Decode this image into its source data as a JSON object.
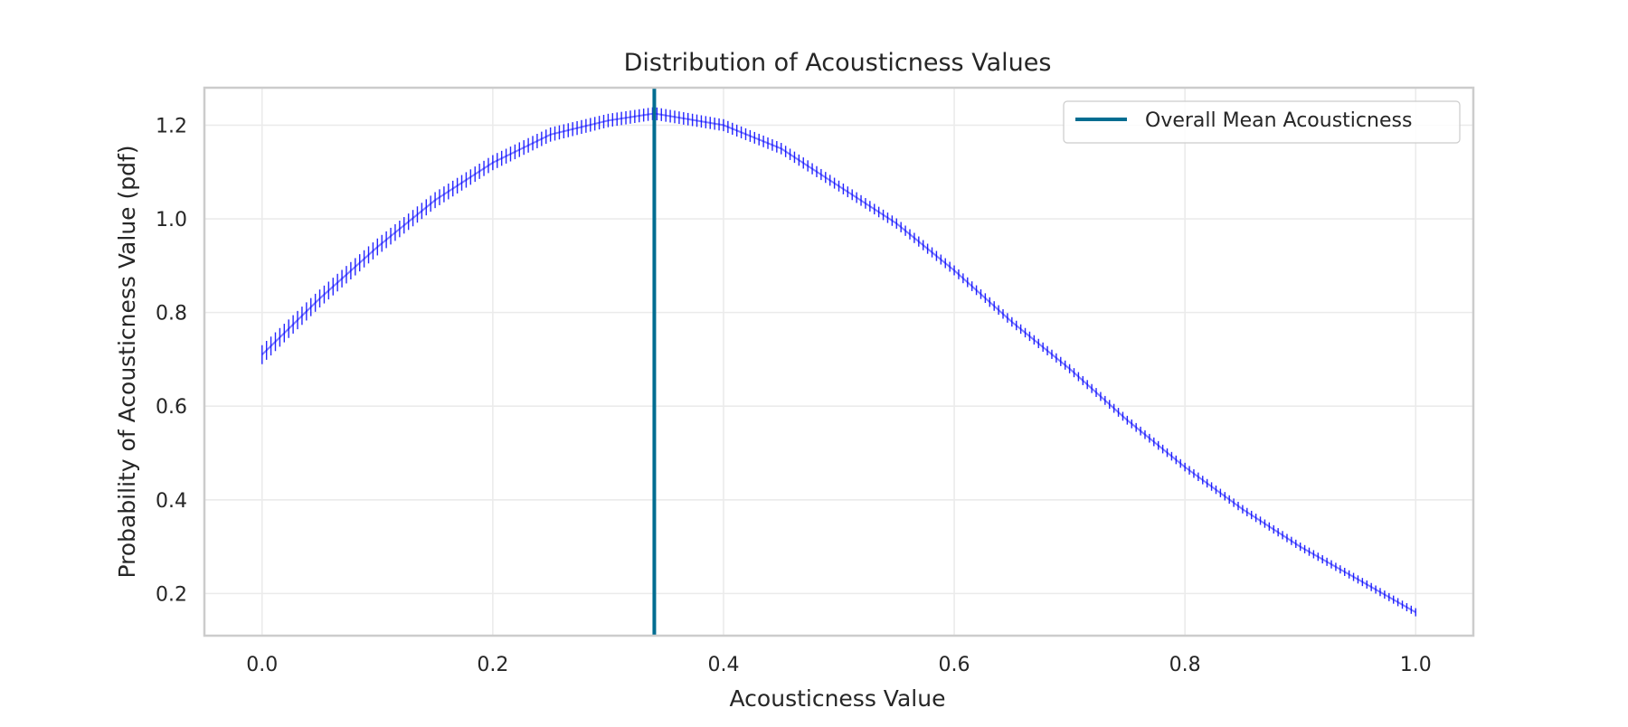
{
  "chart_data": {
    "type": "line",
    "title": "Distribution of Acousticness Values",
    "xlabel": "Acousticness Value",
    "ylabel": "Probability of Acousticness Value (pdf)",
    "xlim": [
      -0.05,
      1.05
    ],
    "ylim": [
      0.11,
      1.28
    ],
    "x_ticks": [
      0.0,
      0.2,
      0.4,
      0.6,
      0.8,
      1.0
    ],
    "x_tick_labels": [
      "0.0",
      "0.2",
      "0.4",
      "0.6",
      "0.8",
      "1.0"
    ],
    "y_ticks": [
      0.2,
      0.4,
      0.6,
      0.8,
      1.0,
      1.2
    ],
    "y_tick_labels": [
      "0.2",
      "0.4",
      "0.6",
      "0.8",
      "1.0",
      "1.2"
    ],
    "grid": true,
    "legend_position": "top-right",
    "series": [
      {
        "kind": "pdf-curve",
        "color": "#0000ff",
        "x": [
          0.0,
          0.05,
          0.1,
          0.15,
          0.2,
          0.25,
          0.3,
          0.34,
          0.4,
          0.45,
          0.5,
          0.55,
          0.6,
          0.65,
          0.7,
          0.75,
          0.8,
          0.85,
          0.9,
          0.95,
          1.0
        ],
        "y": [
          0.71,
          0.83,
          0.94,
          1.04,
          1.12,
          1.18,
          1.21,
          1.225,
          1.2,
          1.15,
          1.07,
          0.99,
          0.89,
          0.78,
          0.68,
          0.57,
          0.47,
          0.38,
          0.3,
          0.23,
          0.16
        ]
      },
      {
        "kind": "vertical-line",
        "name": "Overall Mean Acousticness",
        "x_value": 0.34,
        "color": "#006d91"
      }
    ]
  }
}
